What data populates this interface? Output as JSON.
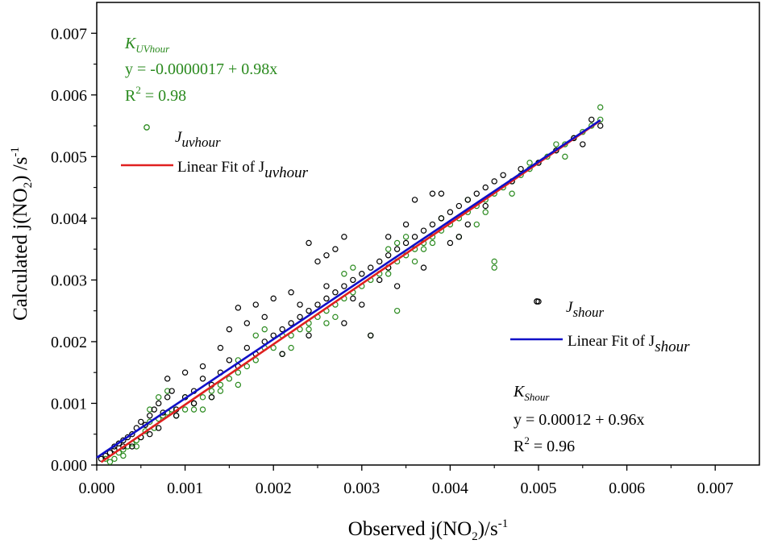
{
  "chart_data": {
    "type": "scatter",
    "xlabel": "Observed j(NO2)/s-1",
    "ylabel": "Calculated j(NO2) /s-1",
    "xlim": [
      0,
      0.0075
    ],
    "ylim": [
      0,
      0.0075
    ],
    "x_ticks": [
      "0.000",
      "0.001",
      "0.002",
      "0.003",
      "0.004",
      "0.005",
      "0.006",
      "0.007"
    ],
    "y_ticks": [
      "0.000",
      "0.001",
      "0.002",
      "0.003",
      "0.004",
      "0.005",
      "0.006",
      "0.007"
    ],
    "series": [
      {
        "name": "Juvhour",
        "marker": "open-circle",
        "color": "#2a8a1e",
        "points": [
          [
            0.0001,
            0.0001
          ],
          [
            0.0002,
            0.0001
          ],
          [
            0.00025,
            0.0002
          ],
          [
            0.0003,
            0.00025
          ],
          [
            0.00035,
            0.0003
          ],
          [
            0.0004,
            0.00035
          ],
          [
            0.00045,
            0.0004
          ],
          [
            0.0005,
            0.00045
          ],
          [
            0.00055,
            0.00055
          ],
          [
            0.0006,
            0.0007
          ],
          [
            0.00065,
            0.0006
          ],
          [
            0.0007,
            0.00075
          ],
          [
            0.00075,
            0.0008
          ],
          [
            0.0008,
            0.00085
          ],
          [
            0.00085,
            0.0009
          ],
          [
            0.0009,
            0.0008
          ],
          [
            0.001,
            0.0009
          ],
          [
            0.0011,
            0.001
          ],
          [
            0.0012,
            0.0011
          ],
          [
            0.0013,
            0.0012
          ],
          [
            0.0014,
            0.0013
          ],
          [
            0.0015,
            0.0014
          ],
          [
            0.0016,
            0.0015
          ],
          [
            0.0017,
            0.0016
          ],
          [
            0.0018,
            0.0017
          ],
          [
            0.0019,
            0.0019
          ],
          [
            0.002,
            0.0019
          ],
          [
            0.0021,
            0.0021
          ],
          [
            0.0022,
            0.0021
          ],
          [
            0.0023,
            0.0022
          ],
          [
            0.0024,
            0.0023
          ],
          [
            0.0025,
            0.0024
          ],
          [
            0.0026,
            0.0025
          ],
          [
            0.0027,
            0.0026
          ],
          [
            0.0028,
            0.0027
          ],
          [
            0.0029,
            0.0028
          ],
          [
            0.003,
            0.0029
          ],
          [
            0.0031,
            0.003
          ],
          [
            0.0032,
            0.0031
          ],
          [
            0.0033,
            0.0032
          ],
          [
            0.0034,
            0.0033
          ],
          [
            0.0035,
            0.0034
          ],
          [
            0.0036,
            0.0035
          ],
          [
            0.0037,
            0.0036
          ],
          [
            0.0038,
            0.0037
          ],
          [
            0.0039,
            0.0038
          ],
          [
            0.004,
            0.0039
          ],
          [
            0.0041,
            0.004
          ],
          [
            0.0042,
            0.0041
          ],
          [
            0.0043,
            0.0042
          ],
          [
            0.0044,
            0.0043
          ],
          [
            0.0045,
            0.0044
          ],
          [
            0.0046,
            0.0045
          ],
          [
            0.0047,
            0.0046
          ],
          [
            0.0048,
            0.0047
          ],
          [
            0.0049,
            0.0048
          ],
          [
            0.005,
            0.0049
          ],
          [
            0.0051,
            0.005
          ],
          [
            0.0052,
            0.0051
          ],
          [
            0.0053,
            0.005
          ],
          [
            0.0054,
            0.0053
          ],
          [
            0.0055,
            0.0054
          ],
          [
            0.0056,
            0.0055
          ],
          [
            0.0057,
            0.0058
          ],
          [
            0.0057,
            0.0056
          ],
          [
            0.0029,
            0.0032
          ],
          [
            0.0028,
            0.0031
          ],
          [
            0.0034,
            0.0025
          ],
          [
            0.0031,
            0.0021
          ],
          [
            0.0045,
            0.0033
          ],
          [
            0.0045,
            0.0032
          ],
          [
            0.0035,
            0.0037
          ],
          [
            0.0039,
            0.004
          ],
          [
            0.0042,
            0.0043
          ],
          [
            0.0014,
            0.0012
          ],
          [
            0.0016,
            0.0013
          ],
          [
            0.0008,
            0.0012
          ],
          [
            0.0007,
            0.0011
          ],
          [
            0.0006,
            0.0009
          ],
          [
            0.0012,
            0.0009
          ],
          [
            0.0018,
            0.0021
          ],
          [
            0.0019,
            0.0022
          ],
          [
            0.0022,
            0.0019
          ],
          [
            0.0026,
            0.0023
          ],
          [
            0.0024,
            0.0022
          ],
          [
            0.0027,
            0.0024
          ],
          [
            0.0033,
            0.0035
          ],
          [
            0.0036,
            0.0033
          ],
          [
            0.0037,
            0.0035
          ],
          [
            0.0041,
            0.0037
          ],
          [
            0.0044,
            0.0041
          ],
          [
            0.0047,
            0.0044
          ],
          [
            0.0049,
            0.0049
          ],
          [
            0.0052,
            0.0052
          ],
          [
            0.0053,
            0.0052
          ],
          [
            0.0033,
            0.0031
          ],
          [
            0.0034,
            0.0036
          ],
          [
            0.0038,
            0.0036
          ],
          [
            0.0043,
            0.0039
          ],
          [
            0.0021,
            0.0018
          ],
          [
            0.0016,
            0.0017
          ],
          [
            0.001,
            0.0011
          ],
          [
            0.0011,
            0.0009
          ],
          [
            0.0013,
            0.0011
          ],
          [
            0.00045,
            0.0003
          ],
          [
            0.0003,
            0.00015
          ],
          [
            0.00015,
            5e-05
          ]
        ]
      },
      {
        "name": "Jshour",
        "marker": "open-circle",
        "color": "#000000",
        "points": [
          [
            5e-05,
            0.0001
          ],
          [
            0.0001,
            0.00015
          ],
          [
            0.00015,
            0.0002
          ],
          [
            0.0002,
            0.0003
          ],
          [
            0.00025,
            0.00035
          ],
          [
            0.0003,
            0.0004
          ],
          [
            0.00035,
            0.00045
          ],
          [
            0.0004,
            0.0005
          ],
          [
            0.00045,
            0.0006
          ],
          [
            0.0005,
            0.0007
          ],
          [
            0.00055,
            0.00065
          ],
          [
            0.0006,
            0.0008
          ],
          [
            0.00065,
            0.0009
          ],
          [
            0.0007,
            0.001
          ],
          [
            0.00075,
            0.00085
          ],
          [
            0.0008,
            0.0011
          ],
          [
            0.00085,
            0.0012
          ],
          [
            0.0009,
            0.0009
          ],
          [
            0.001,
            0.0011
          ],
          [
            0.0011,
            0.0012
          ],
          [
            0.0012,
            0.0014
          ],
          [
            0.0013,
            0.0013
          ],
          [
            0.0014,
            0.0015
          ],
          [
            0.0015,
            0.0017
          ],
          [
            0.0016,
            0.0016
          ],
          [
            0.0017,
            0.0019
          ],
          [
            0.0018,
            0.0018
          ],
          [
            0.0019,
            0.002
          ],
          [
            0.002,
            0.0021
          ],
          [
            0.0021,
            0.0022
          ],
          [
            0.0022,
            0.0023
          ],
          [
            0.0023,
            0.0024
          ],
          [
            0.0024,
            0.0025
          ],
          [
            0.0025,
            0.0026
          ],
          [
            0.0026,
            0.0027
          ],
          [
            0.0027,
            0.0028
          ],
          [
            0.0028,
            0.0029
          ],
          [
            0.0029,
            0.003
          ],
          [
            0.003,
            0.0031
          ],
          [
            0.0031,
            0.0032
          ],
          [
            0.0032,
            0.0033
          ],
          [
            0.0033,
            0.0034
          ],
          [
            0.0034,
            0.0035
          ],
          [
            0.0035,
            0.0036
          ],
          [
            0.0036,
            0.0037
          ],
          [
            0.0037,
            0.0038
          ],
          [
            0.0038,
            0.0039
          ],
          [
            0.0039,
            0.004
          ],
          [
            0.004,
            0.0041
          ],
          [
            0.0041,
            0.0042
          ],
          [
            0.0042,
            0.0043
          ],
          [
            0.0043,
            0.0044
          ],
          [
            0.0044,
            0.0045
          ],
          [
            0.0045,
            0.0046
          ],
          [
            0.0046,
            0.0047
          ],
          [
            0.0048,
            0.0048
          ],
          [
            0.005,
            0.0049
          ],
          [
            0.0052,
            0.0051
          ],
          [
            0.0054,
            0.0053
          ],
          [
            0.0055,
            0.0052
          ],
          [
            0.0057,
            0.0055
          ],
          [
            0.0056,
            0.0056
          ],
          [
            0.0016,
            0.00255
          ],
          [
            0.0024,
            0.0036
          ],
          [
            0.0025,
            0.0033
          ],
          [
            0.0026,
            0.0034
          ],
          [
            0.0027,
            0.0035
          ],
          [
            0.0028,
            0.0037
          ],
          [
            0.0033,
            0.0037
          ],
          [
            0.0036,
            0.0043
          ],
          [
            0.0038,
            0.0044
          ],
          [
            0.0035,
            0.0039
          ],
          [
            0.0039,
            0.0044
          ],
          [
            0.0031,
            0.0021
          ],
          [
            0.0018,
            0.0026
          ],
          [
            0.002,
            0.0027
          ],
          [
            0.0022,
            0.0028
          ],
          [
            0.0023,
            0.0026
          ],
          [
            0.0019,
            0.0024
          ],
          [
            0.0017,
            0.0023
          ],
          [
            0.0015,
            0.0022
          ],
          [
            0.0014,
            0.0019
          ],
          [
            0.0012,
            0.0016
          ],
          [
            0.001,
            0.0015
          ],
          [
            0.0008,
            0.0014
          ],
          [
            0.0021,
            0.0018
          ],
          [
            0.0024,
            0.0021
          ],
          [
            0.0028,
            0.0023
          ],
          [
            0.003,
            0.0026
          ],
          [
            0.0034,
            0.0029
          ],
          [
            0.0037,
            0.0032
          ],
          [
            0.004,
            0.0036
          ],
          [
            0.0042,
            0.0039
          ],
          [
            0.0044,
            0.0042
          ],
          [
            0.0047,
            0.0046
          ],
          [
            0.005,
            0.00265
          ],
          [
            0.0033,
            0.0032
          ],
          [
            0.0032,
            0.003
          ],
          [
            0.0029,
            0.0027
          ],
          [
            0.0026,
            0.0029
          ],
          [
            0.0013,
            0.0011
          ],
          [
            0.0011,
            0.001
          ],
          [
            0.0009,
            0.0008
          ],
          [
            0.0007,
            0.0006
          ],
          [
            0.0005,
            0.00045
          ],
          [
            0.0003,
            0.0003
          ],
          [
            0.0002,
            0.00025
          ],
          [
            0.0004,
            0.0003
          ],
          [
            0.0006,
            0.0005
          ],
          [
            0.0041,
            0.0037
          ]
        ]
      }
    ],
    "fits": [
      {
        "name": "Linear Fit of Juvhour",
        "color": "#e02020",
        "intercept": -1.7e-06,
        "slope": 0.98,
        "x_range": [
          5e-05,
          0.0057
        ]
      },
      {
        "name": "Linear Fit of Jshour",
        "color": "#1010c8",
        "intercept": 0.00012,
        "slope": 0.96,
        "x_range": [
          0.0,
          0.0057
        ]
      }
    ],
    "annotations": {
      "uv_title": "K",
      "uv_title_sub": "UVhour",
      "uv_equation": "y = -0.0000017 + 0.98x",
      "uv_r2": "R",
      "uv_r2_sup": "2",
      "uv_r2_value": " = 0.98",
      "s_title": "K",
      "s_title_sub": "Shour",
      "s_equation": "y = 0.00012 + 0.96x",
      "s_r2": "R",
      "s_r2_sup": "2",
      "s_r2_value": " = 0.96"
    },
    "legend": {
      "uv_symbol_label": "J",
      "uv_symbol_sub": "uvhour",
      "uv_fit_label": "Linear Fit of J",
      "uv_fit_sub": "uvhour",
      "s_symbol_label": "J",
      "s_symbol_sub": "shour",
      "s_fit_label": "Linear Fit of J",
      "s_fit_sub": "shour"
    },
    "axis_text": {
      "x_main": "Observed j(NO",
      "x_sub": "2",
      "x_tail": ")/s",
      "x_sup": "-1",
      "y_main": "Calculated j(NO",
      "y_sub": "2",
      "y_tail": ") /s",
      "y_sup": "-1"
    },
    "grid": false,
    "legend_placement": "inside"
  }
}
